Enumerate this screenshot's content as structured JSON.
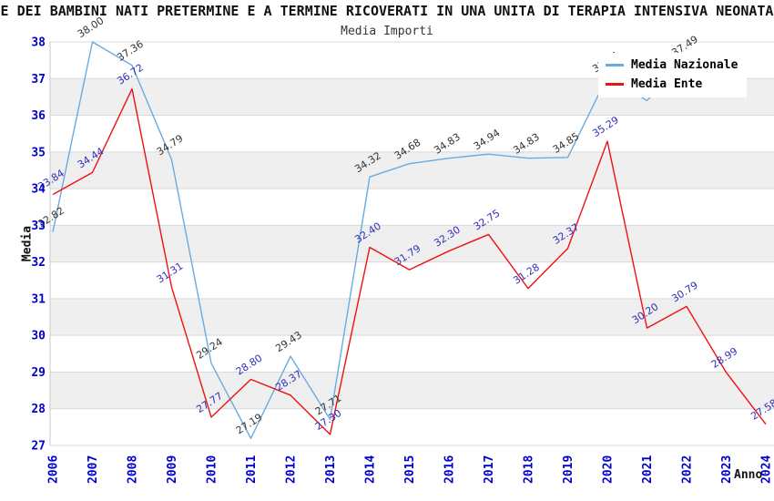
{
  "chart": {
    "title": "IE DEI BAMBINI NATI PRETERMINE E A TERMINE RICOVERATI IN UNA UNITA DI TERAPIA INTENSIVA NEONATAL",
    "subtitle": "Media Importi",
    "ylabel": "Media",
    "xlabel": "Anno"
  },
  "legend": {
    "items": [
      {
        "label": "Media Nazionale",
        "color": "#6aabdf"
      },
      {
        "label": "Media Ente",
        "color": "#ee1111"
      }
    ]
  },
  "chart_data": {
    "type": "line",
    "x": [
      2006,
      2007,
      2008,
      2009,
      2010,
      2011,
      2012,
      2013,
      2014,
      2015,
      2016,
      2017,
      2018,
      2019,
      2020,
      2021,
      2022,
      2023,
      2024
    ],
    "series": [
      {
        "name": "Media Nazionale",
        "color": "#6aabdf",
        "label_color": "#333333",
        "values": [
          32.82,
          38.0,
          37.36,
          34.79,
          29.24,
          27.19,
          29.43,
          27.71,
          34.32,
          34.68,
          34.83,
          34.94,
          34.83,
          34.85,
          37.05,
          36.4,
          37.49,
          null,
          null
        ]
      },
      {
        "name": "Media Ente",
        "color": "#ee1111",
        "label_color": "#3030bb",
        "values": [
          33.84,
          34.44,
          36.72,
          31.31,
          27.77,
          28.8,
          28.37,
          27.3,
          32.4,
          31.79,
          32.3,
          32.75,
          31.28,
          32.37,
          35.29,
          30.2,
          30.79,
          28.99,
          27.58
        ]
      }
    ],
    "title": "Media Importi",
    "xlabel": "Anno",
    "ylabel": "Media",
    "ylim": [
      27,
      38
    ],
    "yticks": [
      27,
      28,
      29,
      30,
      31,
      32,
      33,
      34,
      35,
      36,
      37,
      38
    ],
    "grid": "horizontal gridlines with alternating gray bands",
    "legend_position": "top-right overlay",
    "colors": {
      "tick_label": "#0000cc",
      "gridline": "#d9d9d9",
      "band": "#efefef",
      "axis_border": "#c9c9c9"
    }
  }
}
